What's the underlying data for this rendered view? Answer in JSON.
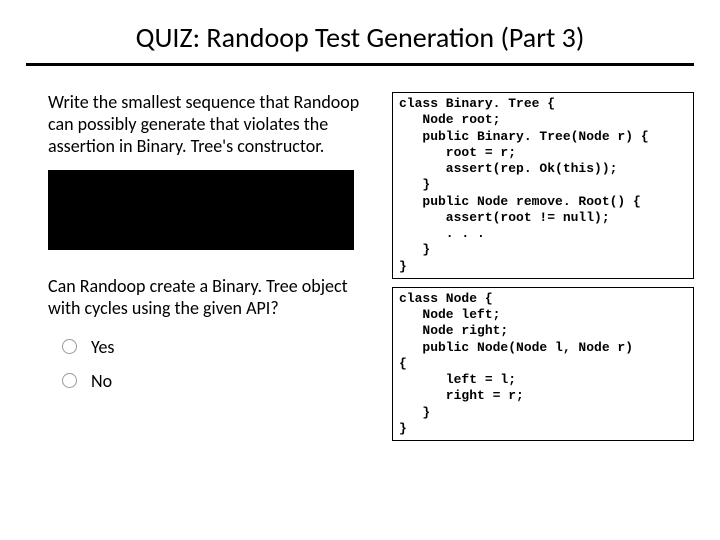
{
  "title": "QUIZ: Randoop Test Generation (Part 3)",
  "prompt1": "Write the smallest sequence that Randoop can possibly generate that violates the assertion in Binary. Tree's constructor.",
  "prompt2": "Can Randoop create a Binary. Tree object with cycles using the given API?",
  "options": {
    "yes": "Yes",
    "no": "No"
  },
  "code": {
    "box1": "class Binary. Tree {\n   Node root;\n   public Binary. Tree(Node r) {\n      root = r;\n      assert(rep. Ok(this));\n   }\n   public Node remove. Root() {\n      assert(root != null);\n      . . .\n   }\n}",
    "box2": "class Node {\n   Node left;\n   Node right;\n   public Node(Node l, Node r)\n{\n      left = l;\n      right = r;\n   }\n}"
  },
  "style": {
    "bg": "#ffffff",
    "text": "#000000",
    "hr_width": 3,
    "title_fontsize": 28,
    "body_fontsize": 18,
    "code_fontsize": 13,
    "answer_box_bg": "#000000",
    "radio_border": "#9a9a9a"
  }
}
